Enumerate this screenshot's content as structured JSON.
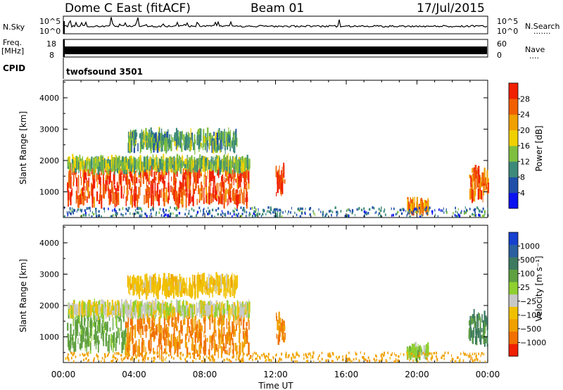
{
  "header": {
    "station": "Dome C East (fitACF)",
    "beam": "Beam 01",
    "date": "17/Jul/2015"
  },
  "nsky_panel": {
    "left_label": "N.Sky",
    "right_label": "N.Search",
    "right_symbol": "·······",
    "left_ticks": [
      "10^5",
      "10^0"
    ],
    "right_ticks": [
      "10^5",
      "10^0"
    ]
  },
  "freq_panel": {
    "left_label_1": "Freq.",
    "left_label_2": "[MHz]",
    "right_label": "Nave",
    "right_symbol": "····",
    "left_ticks": [
      "18",
      "8"
    ],
    "right_ticks": [
      "60",
      "0"
    ]
  },
  "cpid": {
    "label": "CPID",
    "value": "twofsound 3501"
  },
  "x_axis": {
    "title": "Time UT",
    "ticks": [
      "00:00",
      "04:00",
      "08:00",
      "12:00",
      "16:00",
      "20:00",
      "00:00"
    ]
  },
  "chart_data": [
    {
      "type": "heatmap",
      "ylabel": "Slant Range [km]",
      "xlabel": "Time UT",
      "xlim": [
        0,
        24
      ],
      "ylim": [
        180,
        4560
      ],
      "y_ticks": [
        1000,
        2000,
        3000,
        4000
      ],
      "colorbar": {
        "label": "Power [dB]",
        "ticks": [
          "4",
          "8",
          "12",
          "16",
          "20",
          "24",
          "28"
        ],
        "colors": [
          "#0a12f0",
          "#1f4fa8",
          "#3d8a7a",
          "#7fbf3f",
          "#f0d000",
          "#f0a000",
          "#f06000",
          "#f02000"
        ]
      },
      "regions": [
        {
          "t": [
            0.2,
            10.5
          ],
          "range_km": [
            650,
            1750
          ],
          "value_db": 28
        },
        {
          "t": [
            0.2,
            10.5
          ],
          "range_km": [
            1750,
            2000
          ],
          "value_db": 14
        },
        {
          "t": [
            3.6,
            9.8
          ],
          "range_km": [
            2400,
            2850
          ],
          "value_db": 12
        },
        {
          "t": [
            12.0,
            12.5
          ],
          "range_km": [
            900,
            1700
          ],
          "value_db": 26
        },
        {
          "t": [
            19.4,
            20.6
          ],
          "range_km": [
            400,
            650
          ],
          "value_db": 24
        },
        {
          "t": [
            22.9,
            24.0
          ],
          "range_km": [
            850,
            1700
          ],
          "value_db": 26
        },
        {
          "t": [
            0.0,
            24.0
          ],
          "range_km": [
            200,
            500
          ],
          "value_db": 8
        }
      ]
    },
    {
      "type": "heatmap",
      "ylabel": "Slant Range [km]",
      "xlabel": "Time UT",
      "xlim": [
        0,
        24
      ],
      "ylim": [
        180,
        4560
      ],
      "y_ticks": [
        1000,
        2000,
        3000,
        4000
      ],
      "colorbar": {
        "label": "Velocity [m s⁻¹]",
        "ticks": [
          "1000",
          "500",
          "100",
          "25",
          "−25",
          "−100",
          "−500",
          "−1000"
        ],
        "colors": [
          "#1540d0",
          "#2a5fa0",
          "#3d7a60",
          "#5fa040",
          "#8fd030",
          "#c8c8c8",
          "#f0c000",
          "#f0a000",
          "#f07000",
          "#f02000"
        ]
      },
      "regions": [
        {
          "t": [
            0.2,
            3.5
          ],
          "range_km": [
            650,
            1750
          ],
          "value_ms": 150
        },
        {
          "t": [
            3.5,
            10.5
          ],
          "range_km": [
            500,
            1750
          ],
          "value_ms": -110
        },
        {
          "t": [
            0.2,
            10.5
          ],
          "range_km": [
            1750,
            2000
          ],
          "value_ms": 40
        },
        {
          "t": [
            3.6,
            9.8
          ],
          "range_km": [
            2400,
            2850
          ],
          "value_ms": 0
        },
        {
          "t": [
            12.0,
            12.5
          ],
          "range_km": [
            900,
            1700
          ],
          "value_ms": -120
        },
        {
          "t": [
            19.4,
            20.6
          ],
          "range_km": [
            400,
            650
          ],
          "value_ms": 80
        },
        {
          "t": [
            22.9,
            24.0
          ],
          "range_km": [
            850,
            1700
          ],
          "value_ms": 300
        },
        {
          "t": [
            0.0,
            24.0
          ],
          "range_km": [
            200,
            500
          ],
          "value_ms": -60
        }
      ]
    }
  ]
}
